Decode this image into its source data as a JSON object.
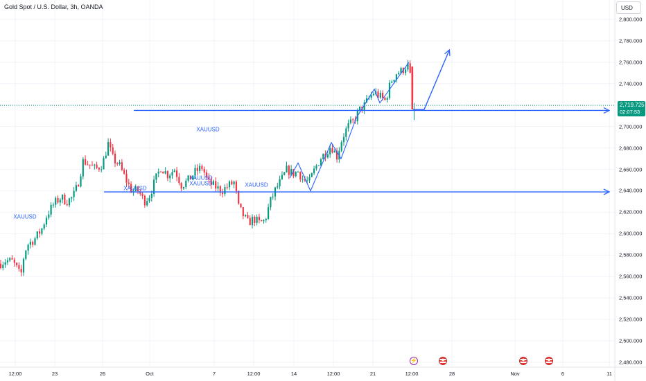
{
  "header": {
    "symbol_title": "Gold Spot / U.S. Dollar, 3h, OANDA",
    "currency": "USD"
  },
  "price": {
    "current": "2,719.725",
    "countdown": "02:07:53",
    "label_color": "#089981"
  },
  "colors": {
    "up": "#089981",
    "down": "#f23645",
    "drawing": "#2962ff",
    "grid": "#f0f3fa"
  },
  "annotations": [
    "XAUUSD",
    "XAUUSD",
    "XAUUSD",
    "XAUUSD",
    "XAUUSD",
    "XAUUSD"
  ],
  "events": [
    {
      "icon": "lightning-icon"
    },
    {
      "icon": "us-flag-icon"
    },
    {
      "icon": "us-flag-icon"
    },
    {
      "icon": "us-flag-icon"
    }
  ],
  "chart_data": {
    "type": "candlestick",
    "y_ticks": [
      "2,800.000",
      "2,780.000",
      "2,760.000",
      "2,740.000",
      "2,720.000",
      "2,700.000",
      "2,680.000",
      "2,660.000",
      "2,640.000",
      "2,620.000",
      "2,600.000",
      "2,580.000",
      "2,560.000",
      "2,540.000",
      "2,520.000",
      "2,500.000",
      "2,480.000"
    ],
    "y_tick_values": [
      2800,
      2780,
      2760,
      2740,
      2720,
      2700,
      2680,
      2660,
      2640,
      2620,
      2600,
      2580,
      2560,
      2540,
      2520,
      2500,
      2480
    ],
    "ylim": [
      2474,
      2806
    ],
    "x_ticks": [
      "12:00",
      "23",
      "26",
      "Oct",
      "7",
      "12:00",
      "14",
      "12:00",
      "21",
      "12:00",
      "28",
      "Nov",
      "6",
      "11"
    ],
    "grid": true,
    "close_path": [
      [
        0,
        2572
      ],
      [
        8,
        2575
      ],
      [
        18,
        2574
      ],
      [
        24,
        2568
      ],
      [
        30,
        2560
      ],
      [
        35,
        2582
      ],
      [
        40,
        2590
      ],
      [
        50,
        2595
      ],
      [
        60,
        2604
      ],
      [
        68,
        2618
      ],
      [
        78,
        2628
      ],
      [
        88,
        2634
      ],
      [
        96,
        2630
      ],
      [
        105,
        2634
      ],
      [
        112,
        2645
      ],
      [
        120,
        2668
      ],
      [
        128,
        2665
      ],
      [
        138,
        2660
      ],
      [
        148,
        2665
      ],
      [
        156,
        2684
      ],
      [
        163,
        2670
      ],
      [
        172,
        2664
      ],
      [
        182,
        2650
      ],
      [
        190,
        2640
      ],
      [
        200,
        2640
      ],
      [
        208,
        2630
      ],
      [
        216,
        2636
      ],
      [
        224,
        2650
      ],
      [
        232,
        2662
      ],
      [
        242,
        2655
      ],
      [
        252,
        2660
      ],
      [
        262,
        2645
      ],
      [
        272,
        2650
      ],
      [
        282,
        2658
      ],
      [
        292,
        2662
      ],
      [
        300,
        2648
      ],
      [
        310,
        2644
      ],
      [
        320,
        2640
      ],
      [
        330,
        2645
      ],
      [
        338,
        2648
      ],
      [
        344,
        2625
      ],
      [
        350,
        2618
      ],
      [
        358,
        2610
      ],
      [
        366,
        2614
      ],
      [
        374,
        2610
      ],
      [
        382,
        2612
      ],
      [
        390,
        2630
      ],
      [
        398,
        2642
      ],
      [
        406,
        2650
      ],
      [
        414,
        2660
      ],
      [
        422,
        2656
      ],
      [
        430,
        2658
      ],
      [
        438,
        2650
      ],
      [
        446,
        2648
      ],
      [
        454,
        2660
      ],
      [
        462,
        2670
      ],
      [
        470,
        2676
      ],
      [
        478,
        2682
      ],
      [
        486,
        2672
      ],
      [
        494,
        2690
      ],
      [
        502,
        2700
      ],
      [
        510,
        2705
      ],
      [
        518,
        2715
      ],
      [
        526,
        2720
      ],
      [
        534,
        2728
      ],
      [
        540,
        2732
      ],
      [
        548,
        2728
      ],
      [
        556,
        2724
      ],
      [
        564,
        2742
      ],
      [
        572,
        2750
      ],
      [
        580,
        2752
      ],
      [
        588,
        2758
      ],
      [
        592,
        2746
      ],
      [
        596,
        2716
      ]
    ],
    "horizontal_levels": [
      {
        "value": 2715
      },
      {
        "value": 2639
      }
    ],
    "projection": [
      {
        "x": 596,
        "value": 2716
      },
      {
        "x": 612,
        "value": 2716
      },
      {
        "x": 648,
        "value": 2771
      }
    ],
    "zigzag": [
      {
        "x": 418,
        "value": 2652
      },
      {
        "x": 430,
        "value": 2666
      },
      {
        "x": 448,
        "value": 2640
      },
      {
        "x": 478,
        "value": 2685
      },
      {
        "x": 492,
        "value": 2670
      },
      {
        "x": 514,
        "value": 2708
      },
      {
        "x": 540,
        "value": 2735
      },
      {
        "x": 548,
        "value": 2722
      },
      {
        "x": 590,
        "value": 2760
      }
    ]
  }
}
